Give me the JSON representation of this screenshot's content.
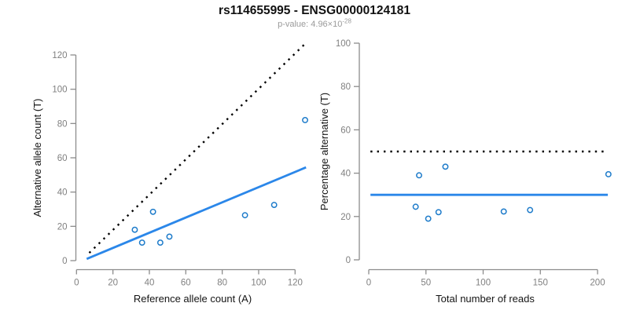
{
  "header": {
    "title": "rs114655995 - ENSG00000124181",
    "pvalue_text": "p-value: 4.96×10",
    "pvalue_exponent": "-28"
  },
  "colors": {
    "accent_blue": "#2b87e9",
    "point_blue": "#1d7bca",
    "dotted_black": "#000000",
    "axis_gray": "#8c8c8c",
    "tick_text_gray": "#808080",
    "label_black": "#141414"
  },
  "chart_data": [
    {
      "type": "scatter",
      "title": "",
      "xlabel": "Reference allele count (A)",
      "ylabel": "Alternative allele count (T)",
      "xlim": [
        0,
        127
      ],
      "ylim": [
        0,
        127
      ],
      "xticks": [
        0,
        20,
        40,
        60,
        80,
        100,
        120
      ],
      "yticks": [
        0,
        20,
        40,
        60,
        80,
        100,
        120
      ],
      "grid": false,
      "legend": "none",
      "points": [
        [
          32,
          18
        ],
        [
          36,
          10.5
        ],
        [
          42,
          28.5
        ],
        [
          46,
          10.5
        ],
        [
          51,
          14
        ],
        [
          92.5,
          26.5
        ],
        [
          108.5,
          32.5
        ],
        [
          125.5,
          82
        ]
      ],
      "lines": [
        {
          "name": "identity-line",
          "style": "dotted",
          "color": "#000000",
          "x1": 7,
          "y1": 4.5,
          "x2": 125,
          "y2": 126
        },
        {
          "name": "fit-line",
          "style": "solid",
          "color": "#2b87e9",
          "x1": 5.6,
          "y1": 1.0,
          "x2": 126,
          "y2": 54.4
        }
      ]
    },
    {
      "type": "scatter",
      "title": "",
      "xlabel": "Total number of reads",
      "ylabel": "Percentage alternative (T)",
      "xlim": [
        0,
        210
      ],
      "ylim": [
        0,
        100
      ],
      "xticks": [
        0,
        50,
        100,
        150,
        200
      ],
      "yticks": [
        0,
        20,
        40,
        60,
        80,
        100
      ],
      "grid": false,
      "legend": "none",
      "points": [
        [
          41,
          24.5
        ],
        [
          44,
          39
        ],
        [
          52,
          19
        ],
        [
          61,
          22
        ],
        [
          67,
          43
        ],
        [
          118,
          22.3
        ],
        [
          141,
          23
        ],
        [
          209.5,
          39.5
        ]
      ],
      "lines": [
        {
          "name": "expected-50pct-line",
          "style": "dotted",
          "color": "#000000",
          "x1": 1.5,
          "y1": 50,
          "x2": 208,
          "y2": 50
        },
        {
          "name": "observed-ratio-line",
          "style": "solid",
          "color": "#2b87e9",
          "x1": 1.5,
          "y1": 30,
          "x2": 209,
          "y2": 30
        }
      ]
    }
  ]
}
